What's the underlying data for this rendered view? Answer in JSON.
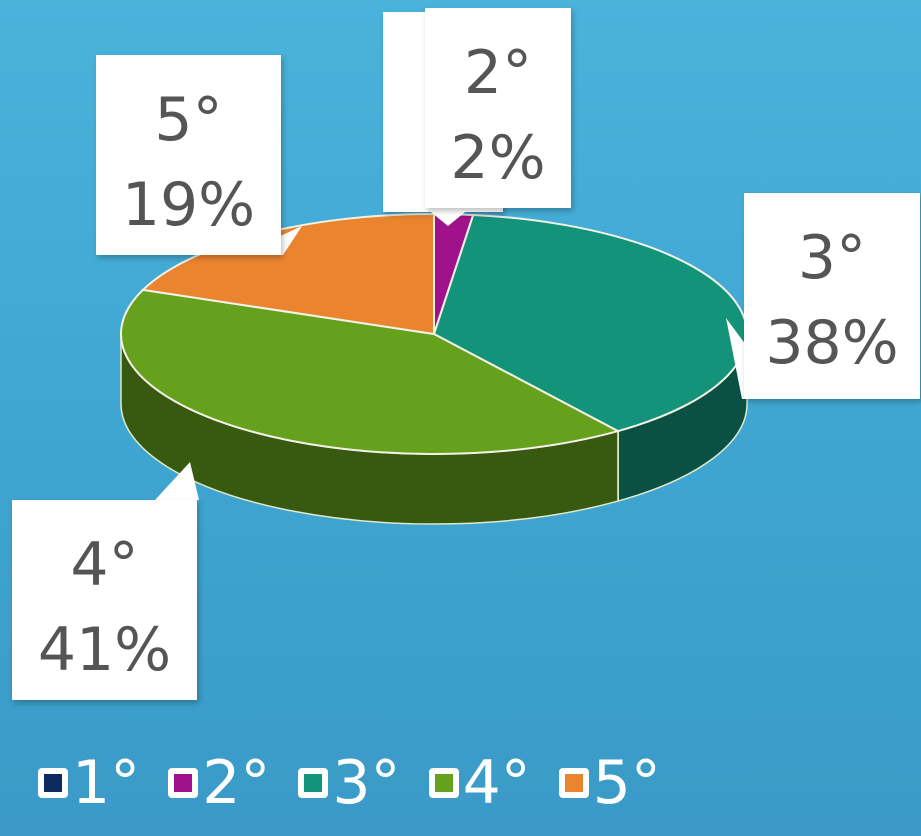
{
  "chart_data": {
    "type": "pie",
    "style": "3d",
    "categories": [
      "1°",
      "2°",
      "3°",
      "4°",
      "5°"
    ],
    "values": [
      0,
      2,
      38,
      41,
      19
    ],
    "data_labels": [
      {
        "category": "1°",
        "label": "0"
      },
      {
        "category": "2°",
        "label": "2%"
      },
      {
        "category": "3°",
        "label": "38%"
      },
      {
        "category": "4°",
        "label": "41%"
      },
      {
        "category": "5°",
        "label": "19%"
      }
    ],
    "colors": [
      "#0d2b5e",
      "#a0128c",
      "#13937a",
      "#66a11d",
      "#eb842e"
    ],
    "legend": {
      "placement": "bottom",
      "entries": [
        "1°",
        "2°",
        "3°",
        "4°",
        "5°"
      ]
    }
  }
}
